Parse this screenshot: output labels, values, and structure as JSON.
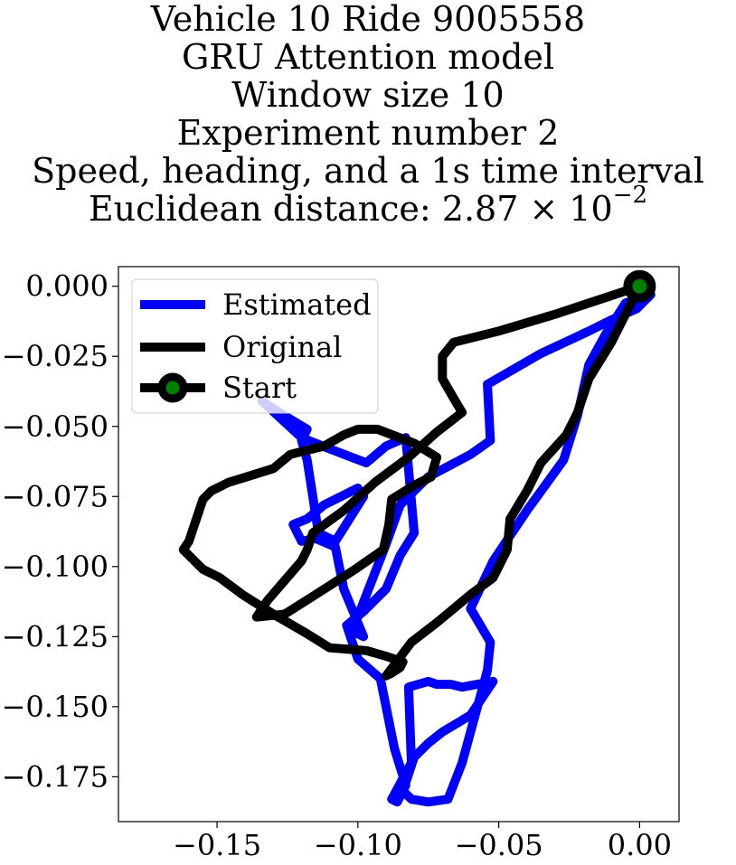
{
  "title": {
    "lines": [
      "Vehicle 10 Ride 9005558",
      "GRU Attention model",
      "Window size 10",
      "Experiment number 2",
      "Speed, heading, and a 1s time interval"
    ],
    "distance_prefix": "Euclidean distance: 2.87 × 10",
    "distance_exponent": "−2"
  },
  "chart_data": {
    "type": "line",
    "xlim": [
      -0.185,
      0.014
    ],
    "ylim": [
      -0.191,
      0.007
    ],
    "x_ticks": [
      {
        "value": -0.15,
        "label": "−0.15"
      },
      {
        "value": -0.1,
        "label": "−0.10"
      },
      {
        "value": -0.05,
        "label": "−0.05"
      },
      {
        "value": 0.0,
        "label": "0.00"
      }
    ],
    "y_ticks": [
      {
        "value": 0.0,
        "label": "0.000"
      },
      {
        "value": -0.025,
        "label": "−0.025"
      },
      {
        "value": -0.05,
        "label": "−0.050"
      },
      {
        "value": -0.075,
        "label": "−0.075"
      },
      {
        "value": -0.1,
        "label": "−0.100"
      },
      {
        "value": -0.125,
        "label": "−0.125"
      },
      {
        "value": -0.15,
        "label": "−0.150"
      },
      {
        "value": -0.175,
        "label": "−0.175"
      }
    ],
    "grid": false,
    "legend": {
      "placement": "top-left",
      "entries": [
        "Estimated",
        "Original",
        "Start"
      ]
    },
    "series": [
      {
        "name": "Estimated",
        "color": "#0000ff",
        "x": [
          0.004,
          -0.001,
          -0.01,
          -0.018,
          -0.035,
          -0.054,
          -0.053,
          -0.06,
          -0.075,
          -0.085,
          -0.09,
          -0.102,
          -0.098,
          -0.105,
          -0.108,
          -0.115,
          -0.12,
          -0.123,
          -0.118,
          -0.112,
          -0.1,
          -0.098,
          -0.108,
          -0.114,
          -0.118,
          -0.12,
          -0.118,
          -0.128,
          -0.134,
          -0.12,
          -0.11,
          -0.097,
          -0.09,
          -0.083,
          -0.08,
          -0.085,
          -0.09,
          -0.098,
          -0.104,
          -0.1,
          -0.092,
          -0.087,
          -0.083,
          -0.086,
          -0.088,
          -0.081,
          -0.082,
          -0.075,
          -0.072,
          -0.067,
          -0.063,
          -0.052,
          -0.06,
          -0.07,
          -0.075,
          -0.08,
          -0.084,
          -0.081,
          -0.075,
          -0.068,
          -0.063,
          -0.054,
          -0.053,
          -0.06,
          -0.052,
          -0.04,
          -0.027,
          -0.022,
          -0.018,
          -0.012,
          -0.005,
          0.004
        ],
        "y": [
          -0.003,
          -0.008,
          -0.012,
          -0.016,
          -0.024,
          -0.035,
          -0.055,
          -0.06,
          -0.068,
          -0.078,
          -0.092,
          -0.123,
          -0.125,
          -0.108,
          -0.093,
          -0.09,
          -0.091,
          -0.085,
          -0.083,
          -0.078,
          -0.072,
          -0.075,
          -0.091,
          -0.088,
          -0.062,
          -0.055,
          -0.051,
          -0.045,
          -0.041,
          -0.054,
          -0.058,
          -0.063,
          -0.057,
          -0.054,
          -0.088,
          -0.096,
          -0.108,
          -0.116,
          -0.121,
          -0.133,
          -0.14,
          -0.165,
          -0.178,
          -0.184,
          -0.183,
          -0.17,
          -0.143,
          -0.141,
          -0.142,
          -0.142,
          -0.143,
          -0.141,
          -0.153,
          -0.159,
          -0.163,
          -0.168,
          -0.18,
          -0.183,
          -0.184,
          -0.183,
          -0.17,
          -0.137,
          -0.127,
          -0.115,
          -0.098,
          -0.08,
          -0.062,
          -0.046,
          -0.028,
          -0.017,
          -0.006,
          -0.003
        ]
      },
      {
        "name": "Original",
        "color": "#000000",
        "x": [
          0.0,
          -0.015,
          -0.03,
          -0.05,
          -0.066,
          -0.07,
          -0.07,
          -0.066,
          -0.063,
          -0.072,
          -0.082,
          -0.094,
          -0.105,
          -0.116,
          -0.118,
          -0.12,
          -0.126,
          -0.132,
          -0.136,
          -0.126,
          -0.115,
          -0.101,
          -0.091,
          -0.089,
          -0.088,
          -0.08,
          -0.074,
          -0.072,
          -0.08,
          -0.093,
          -0.1,
          -0.105,
          -0.112,
          -0.124,
          -0.13,
          -0.146,
          -0.152,
          -0.155,
          -0.158,
          -0.16,
          -0.162,
          -0.158,
          -0.155,
          -0.149,
          -0.141,
          -0.13,
          -0.118,
          -0.11,
          -0.097,
          -0.09,
          -0.084,
          -0.085,
          -0.088,
          -0.09,
          -0.081,
          -0.072,
          -0.066,
          -0.06,
          -0.052,
          -0.047,
          -0.046,
          -0.04,
          -0.035,
          -0.026,
          -0.022,
          -0.018,
          -0.01,
          0.0
        ],
        "y": [
          0.0,
          -0.005,
          -0.01,
          -0.016,
          -0.02,
          -0.025,
          -0.033,
          -0.04,
          -0.045,
          -0.052,
          -0.061,
          -0.07,
          -0.08,
          -0.088,
          -0.094,
          -0.098,
          -0.105,
          -0.112,
          -0.118,
          -0.117,
          -0.11,
          -0.101,
          -0.094,
          -0.085,
          -0.076,
          -0.071,
          -0.068,
          -0.061,
          -0.056,
          -0.051,
          -0.051,
          -0.053,
          -0.057,
          -0.06,
          -0.065,
          -0.07,
          -0.073,
          -0.076,
          -0.085,
          -0.091,
          -0.094,
          -0.098,
          -0.101,
          -0.104,
          -0.11,
          -0.117,
          -0.124,
          -0.129,
          -0.13,
          -0.132,
          -0.134,
          -0.136,
          -0.138,
          -0.139,
          -0.127,
          -0.12,
          -0.115,
          -0.11,
          -0.104,
          -0.094,
          -0.083,
          -0.073,
          -0.063,
          -0.053,
          -0.045,
          -0.033,
          -0.02,
          0.0
        ]
      },
      {
        "name": "Start",
        "color": "#000000",
        "marker_face": "#008000",
        "x": [
          0.0
        ],
        "y": [
          0.0
        ]
      }
    ]
  }
}
